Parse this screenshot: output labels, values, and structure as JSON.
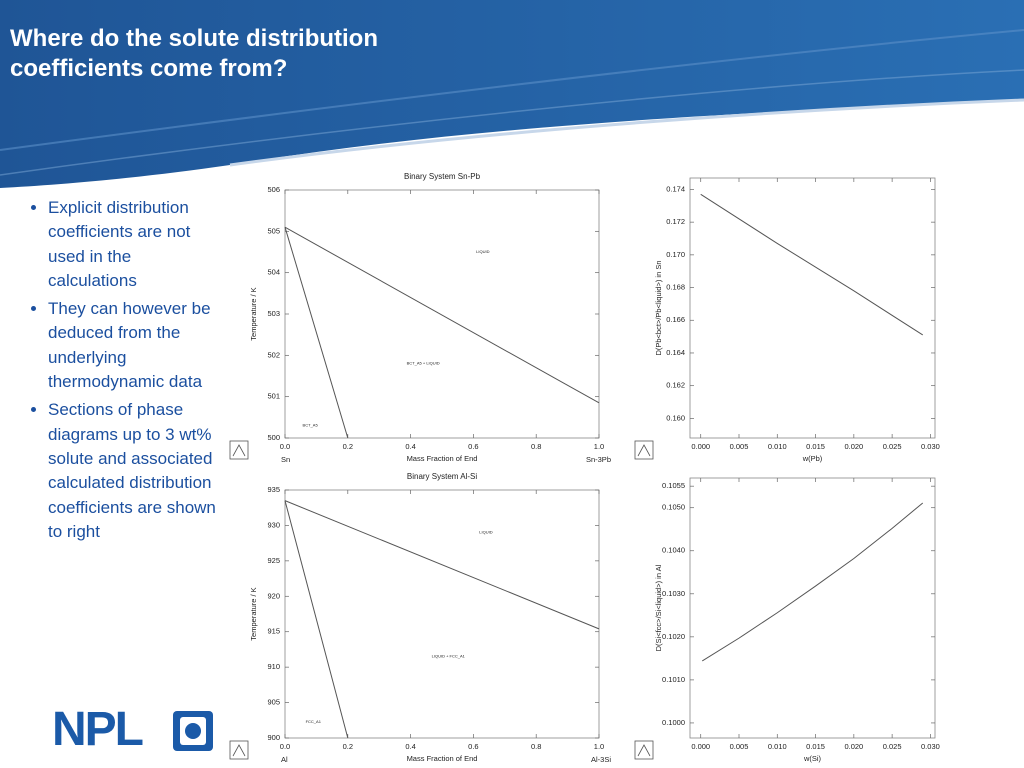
{
  "slide": {
    "title": "Where do the solute distribution coefficients come from?",
    "bullets": [
      "Explicit distribution coefficients are not used in the calculations",
      "They can however be deduced from the underlying thermodynamic data",
      "Sections of phase diagrams up to 3 wt% solute and associated calculated distribution coefficients are shown to right"
    ],
    "logo": "NPL"
  },
  "chart_data": [
    {
      "type": "line",
      "title": "Binary System Sn-Pb",
      "xlabel": "Mass Fraction of End",
      "ylabel": "Temperature / K",
      "x_left_label": "Sn",
      "x_right_label": "Sn-3Pb",
      "annotations": [
        "LIQUID",
        "BCT_A5 + LIQUID",
        "BCT_A5"
      ],
      "xlim": [
        0,
        1
      ],
      "ylim": [
        500,
        506
      ],
      "xticks": [
        {
          "value": 0,
          "label": "0.0"
        },
        0.2,
        0.4,
        0.6,
        0.8,
        {
          "value": 1,
          "label": "1.0"
        }
      ],
      "yticks": [
        500,
        501,
        502,
        503,
        504,
        505,
        506
      ],
      "series": [
        {
          "color": "#555555",
          "x": [
            0,
            1
          ],
          "values": [
            505.1,
            500.85
          ]
        },
        {
          "color": "#555555",
          "x": [
            0,
            0.2
          ],
          "values": [
            505.1,
            500
          ]
        }
      ]
    },
    {
      "type": "line",
      "xlabel": "w(Pb)",
      "ylabel": "D(Pb<bct>/Pb<liquid>) in Sn",
      "xlim": [
        -0.0014,
        0.0306
      ],
      "ylim": [
        0.1588,
        0.1747
      ],
      "xticks": [
        {
          "value": 0,
          "label": "0.000"
        },
        0.005,
        {
          "value": 0.01,
          "label": "0.010"
        },
        0.015,
        {
          "value": 0.02,
          "label": "0.020"
        },
        0.025,
        {
          "value": 0.03,
          "label": "0.030"
        }
      ],
      "yticks": [
        {
          "value": 0.16,
          "label": "0.160"
        },
        0.162,
        0.164,
        0.166,
        0.168,
        {
          "value": 0.17,
          "label": "0.170"
        },
        0.172,
        0.174
      ],
      "series": [
        {
          "color": "#555555",
          "x": [
            0,
            0.01,
            0.02,
            0.029
          ],
          "values": [
            0.1737,
            0.1707,
            0.1678,
            0.1651
          ]
        }
      ]
    },
    {
      "type": "line",
      "title": "Binary System Al-Si",
      "xlabel": "Mass Fraction of End",
      "ylabel": "Temperature / K",
      "x_left_label": "Al",
      "x_right_label": "Al-3Si",
      "annotations": [
        "LIQUID",
        "LIQUID + FCC_A1",
        "FCC_A1"
      ],
      "xlim": [
        0,
        1
      ],
      "ylim": [
        900,
        935
      ],
      "xticks": [
        {
          "value": 0,
          "label": "0.0"
        },
        0.2,
        0.4,
        0.6,
        0.8,
        {
          "value": 1,
          "label": "1.0"
        }
      ],
      "yticks": [
        900,
        905,
        910,
        915,
        920,
        925,
        930,
        935
      ],
      "series": [
        {
          "color": "#555555",
          "x": [
            0,
            1
          ],
          "values": [
            933.5,
            915.4
          ]
        },
        {
          "color": "#555555",
          "x": [
            0,
            0.2
          ],
          "values": [
            933.5,
            900
          ]
        }
      ]
    },
    {
      "type": "line",
      "xlabel": "w(Si)",
      "ylabel": "D(Si<fcc>/Si<liquid>) in Al",
      "xlim": [
        -0.0014,
        0.0306
      ],
      "ylim": [
        0.09965,
        0.10569
      ],
      "xticks": [
        {
          "value": 0,
          "label": "0.000"
        },
        0.005,
        {
          "value": 0.01,
          "label": "0.010"
        },
        0.015,
        {
          "value": 0.02,
          "label": "0.020"
        },
        0.025,
        {
          "value": 0.03,
          "label": "0.030"
        }
      ],
      "yticks": [
        {
          "value": 0.1,
          "label": "0.1000"
        },
        {
          "value": 0.101,
          "label": "0.1010"
        },
        {
          "value": 0.102,
          "label": "0.1020"
        },
        {
          "value": 0.103,
          "label": "0.1030"
        },
        {
          "value": 0.104,
          "label": "0.1040"
        },
        {
          "value": 0.105,
          "label": "0.1050"
        },
        0.1055
      ],
      "series": [
        {
          "color": "#555555",
          "x": [
            0.0002,
            0.005,
            0.01,
            0.015,
            0.02,
            0.025,
            0.029
          ],
          "values": [
            0.10144,
            0.10197,
            0.10256,
            0.10318,
            0.10382,
            0.10452,
            0.10511
          ]
        }
      ]
    }
  ]
}
